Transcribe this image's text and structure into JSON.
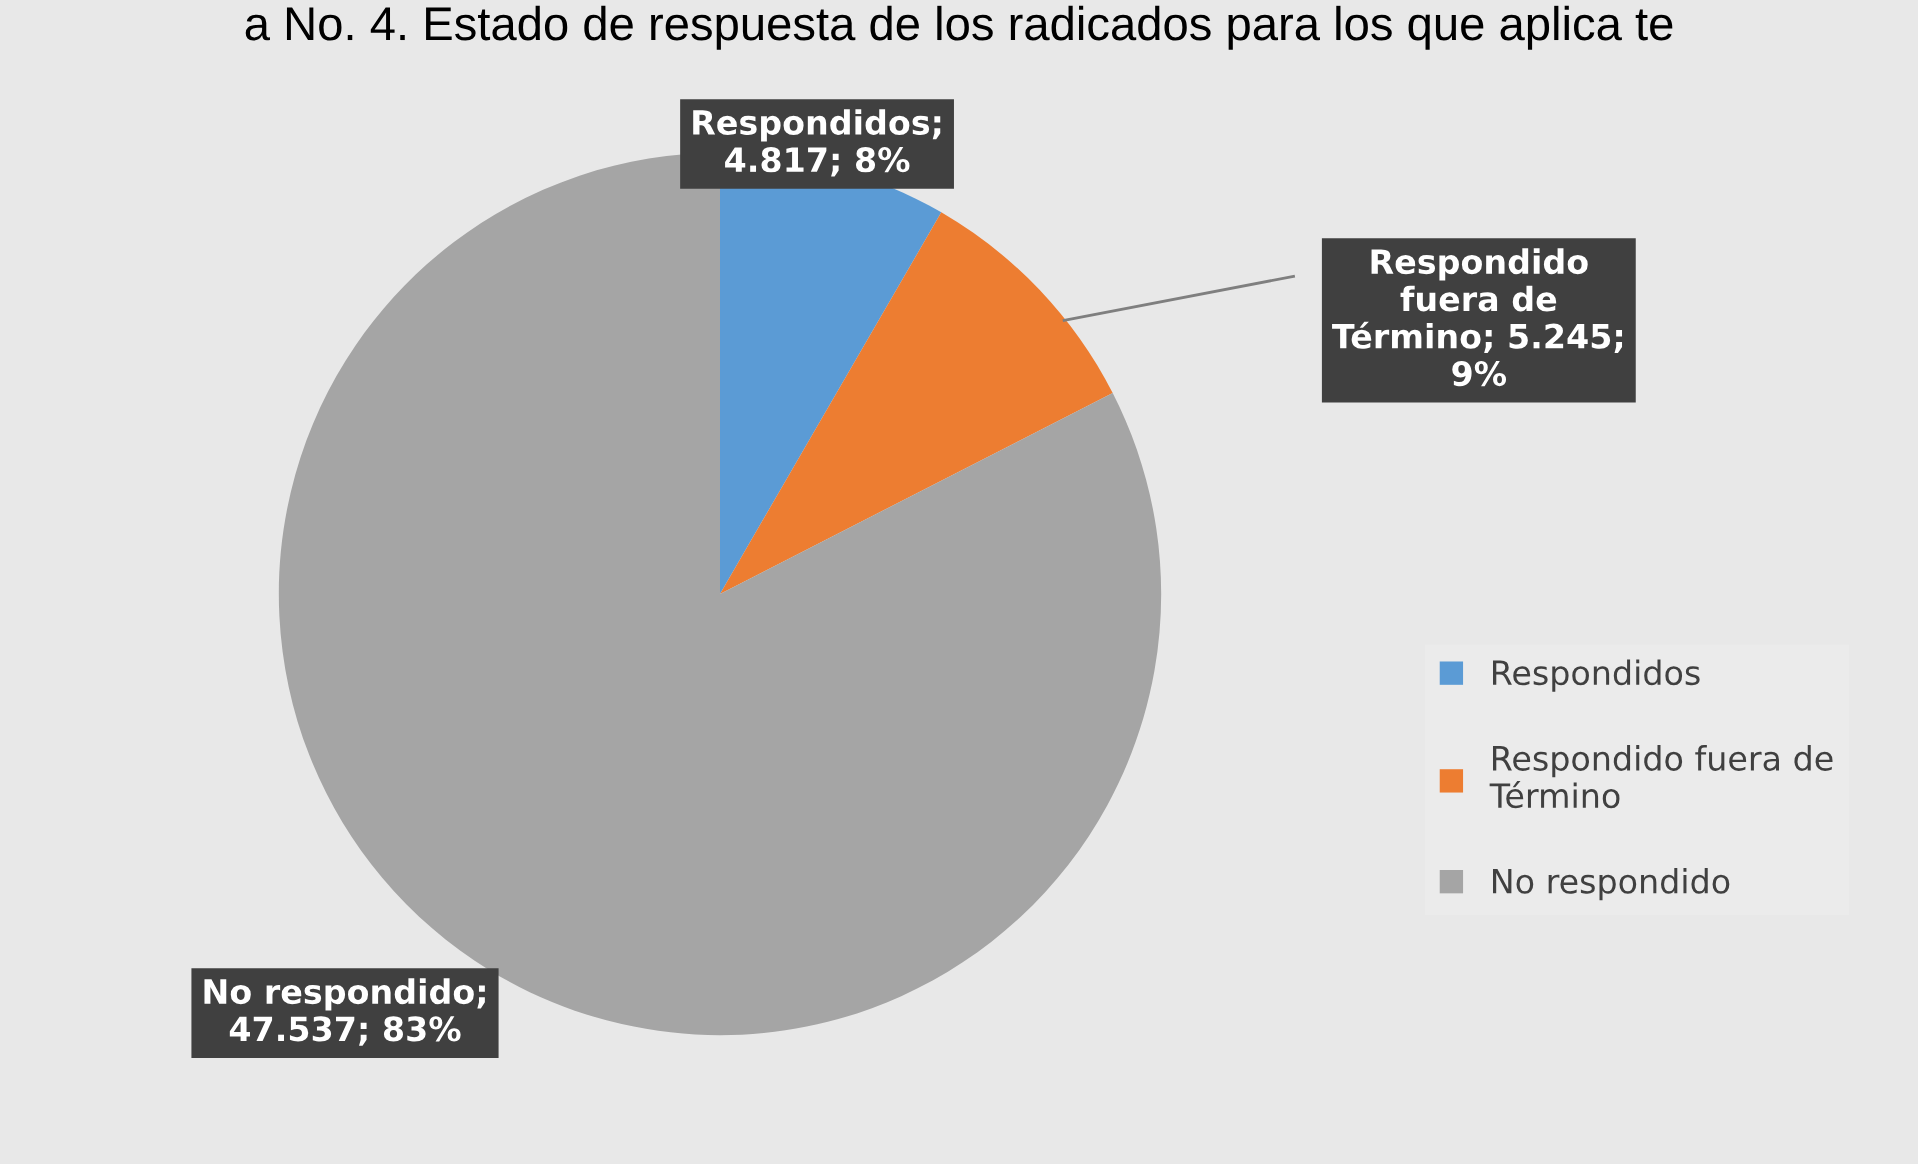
{
  "chart_data": {
    "type": "pie",
    "title": "a No. 4. Estado de respuesta de los radicados para los que aplica te",
    "categories": [
      "Respondidos",
      "Respondido fuera de Término",
      "No respondido"
    ],
    "values": [
      4817,
      5245,
      47537
    ],
    "colors": [
      "#5b9bd5",
      "#ed7d31",
      "#a5a5a5"
    ],
    "value_labels": [
      "Respondidos;\n4.817; 8%",
      "Respondido\nfuera de\nTérmino; 5.245;\n9%",
      "No respondido;\n47.537; 83%"
    ],
    "legend": "right"
  }
}
